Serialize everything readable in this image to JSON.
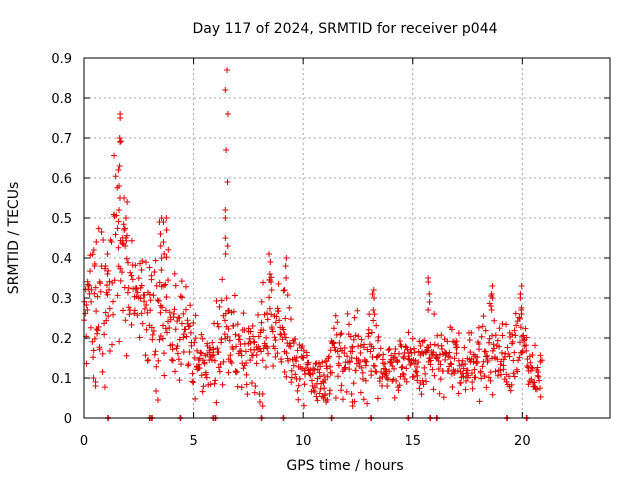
{
  "chart_data": {
    "type": "scatter",
    "title": "Day 117 of 2024, SRMTID for receiver p044",
    "xlabel": "GPS time / hours",
    "ylabel": "SRMTID / TECUs",
    "xlim": [
      0,
      24
    ],
    "ylim": [
      0,
      0.9
    ],
    "x_ticks": [
      0,
      5,
      10,
      15,
      20
    ],
    "x_tick_labels": [
      "0",
      "5",
      "10",
      "15",
      "20"
    ],
    "y_ticks": [
      0,
      0.1,
      0.2,
      0.3,
      0.4,
      0.5,
      0.6,
      0.7,
      0.8,
      0.9
    ],
    "y_tick_labels": [
      "0",
      "0.1",
      "0.2",
      "0.3",
      "0.4",
      "0.5",
      "0.6",
      "0.7",
      "0.8",
      "0.9"
    ],
    "grid": true,
    "marker": "+",
    "color": "#e00000",
    "series": [
      {
        "name": "SRMTID",
        "trend": [
          [
            0.0,
            0.25,
            0.06
          ],
          [
            0.4,
            0.27,
            0.08
          ],
          [
            0.8,
            0.3,
            0.09
          ],
          [
            1.2,
            0.33,
            0.1
          ],
          [
            1.5,
            0.42,
            0.12
          ],
          [
            1.7,
            0.47,
            0.12
          ],
          [
            2.0,
            0.35,
            0.1
          ],
          [
            2.4,
            0.3,
            0.06
          ],
          [
            2.8,
            0.28,
            0.06
          ],
          [
            3.0,
            0.25,
            0.07
          ],
          [
            3.4,
            0.28,
            0.1
          ],
          [
            3.8,
            0.27,
            0.09
          ],
          [
            4.2,
            0.22,
            0.07
          ],
          [
            4.6,
            0.2,
            0.06
          ],
          [
            5.0,
            0.17,
            0.05
          ],
          [
            5.4,
            0.14,
            0.04
          ],
          [
            5.8,
            0.13,
            0.04
          ],
          [
            6.0,
            0.17,
            0.06
          ],
          [
            6.3,
            0.22,
            0.08
          ],
          [
            6.6,
            0.25,
            0.08
          ],
          [
            7.0,
            0.2,
            0.05
          ],
          [
            7.5,
            0.16,
            0.05
          ],
          [
            8.0,
            0.18,
            0.06
          ],
          [
            8.5,
            0.24,
            0.07
          ],
          [
            9.0,
            0.22,
            0.07
          ],
          [
            9.5,
            0.16,
            0.05
          ],
          [
            10.0,
            0.13,
            0.04
          ],
          [
            10.5,
            0.1,
            0.03
          ],
          [
            11.0,
            0.1,
            0.03
          ],
          [
            11.5,
            0.15,
            0.05
          ],
          [
            12.0,
            0.16,
            0.05
          ],
          [
            12.5,
            0.15,
            0.05
          ],
          [
            13.0,
            0.16,
            0.06
          ],
          [
            13.3,
            0.2,
            0.06
          ],
          [
            13.6,
            0.12,
            0.03
          ],
          [
            14.0,
            0.13,
            0.03
          ],
          [
            14.5,
            0.14,
            0.04
          ],
          [
            15.0,
            0.13,
            0.03
          ],
          [
            15.5,
            0.14,
            0.04
          ],
          [
            16.0,
            0.15,
            0.05
          ],
          [
            16.5,
            0.14,
            0.04
          ],
          [
            17.0,
            0.14,
            0.04
          ],
          [
            17.5,
            0.13,
            0.04
          ],
          [
            18.0,
            0.15,
            0.04
          ],
          [
            18.5,
            0.17,
            0.06
          ],
          [
            19.0,
            0.15,
            0.04
          ],
          [
            19.5,
            0.16,
            0.05
          ],
          [
            19.8,
            0.22,
            0.06
          ],
          [
            20.0,
            0.2,
            0.05
          ],
          [
            20.3,
            0.1,
            0.03
          ],
          [
            20.6,
            0.12,
            0.04
          ],
          [
            20.9,
            0.12,
            0.04
          ]
        ],
        "bursts": [
          {
            "x": 0.5,
            "values": [
              0.44,
              0.42,
              0.38,
              0.09,
              0.08,
              0.1
            ]
          },
          {
            "x": 1.0,
            "values": [
              0.41,
              0.38,
              0.36
            ]
          },
          {
            "x": 1.6,
            "values": [
              0.76,
              0.75,
              0.7,
              0.69,
              0.63,
              0.62,
              0.58,
              0.55,
              0.52
            ]
          },
          {
            "x": 1.9,
            "values": [
              0.55,
              0.54,
              0.5,
              0.47,
              0.45,
              0.43
            ]
          },
          {
            "x": 3.5,
            "values": [
              0.5,
              0.49,
              0.46,
              0.43,
              0.4,
              0.37
            ]
          },
          {
            "x": 3.7,
            "values": [
              0.5,
              0.49,
              0.47,
              0.44,
              0.41
            ]
          },
          {
            "x": 6.5,
            "values": [
              0.87,
              0.82,
              0.76,
              0.67,
              0.59,
              0.52,
              0.5,
              0.45,
              0.43,
              0.41
            ]
          },
          {
            "x": 8.5,
            "values": [
              0.41,
              0.39,
              0.36,
              0.34,
              0.32
            ]
          },
          {
            "x": 9.2,
            "values": [
              0.4,
              0.38,
              0.35,
              0.32
            ]
          },
          {
            "x": 13.2,
            "values": [
              0.32,
              0.31,
              0.3,
              0.27
            ]
          },
          {
            "x": 15.7,
            "values": [
              0.35,
              0.34,
              0.31,
              0.29,
              0.27
            ]
          },
          {
            "x": 18.6,
            "values": [
              0.33,
              0.31,
              0.3,
              0.28,
              0.27
            ]
          },
          {
            "x": 19.9,
            "values": [
              0.33,
              0.31,
              0.3,
              0.27,
              0.26
            ]
          },
          {
            "x": 8.1,
            "values": [
              0.03,
              0.04,
              0.06
            ]
          },
          {
            "x": 11.0,
            "values": [
              0.04,
              0.05,
              0.05,
              0.06
            ]
          },
          {
            "x": 12.2,
            "values": [
              0.03,
              0.04,
              0.06
            ]
          }
        ]
      }
    ],
    "zero_markers": [
      1.1,
      3.0,
      3.1,
      4.4,
      5.9,
      6.0,
      8.1,
      9.1,
      11.3,
      13.1,
      14.8,
      15.8,
      16.1,
      19.3,
      20.2
    ]
  }
}
